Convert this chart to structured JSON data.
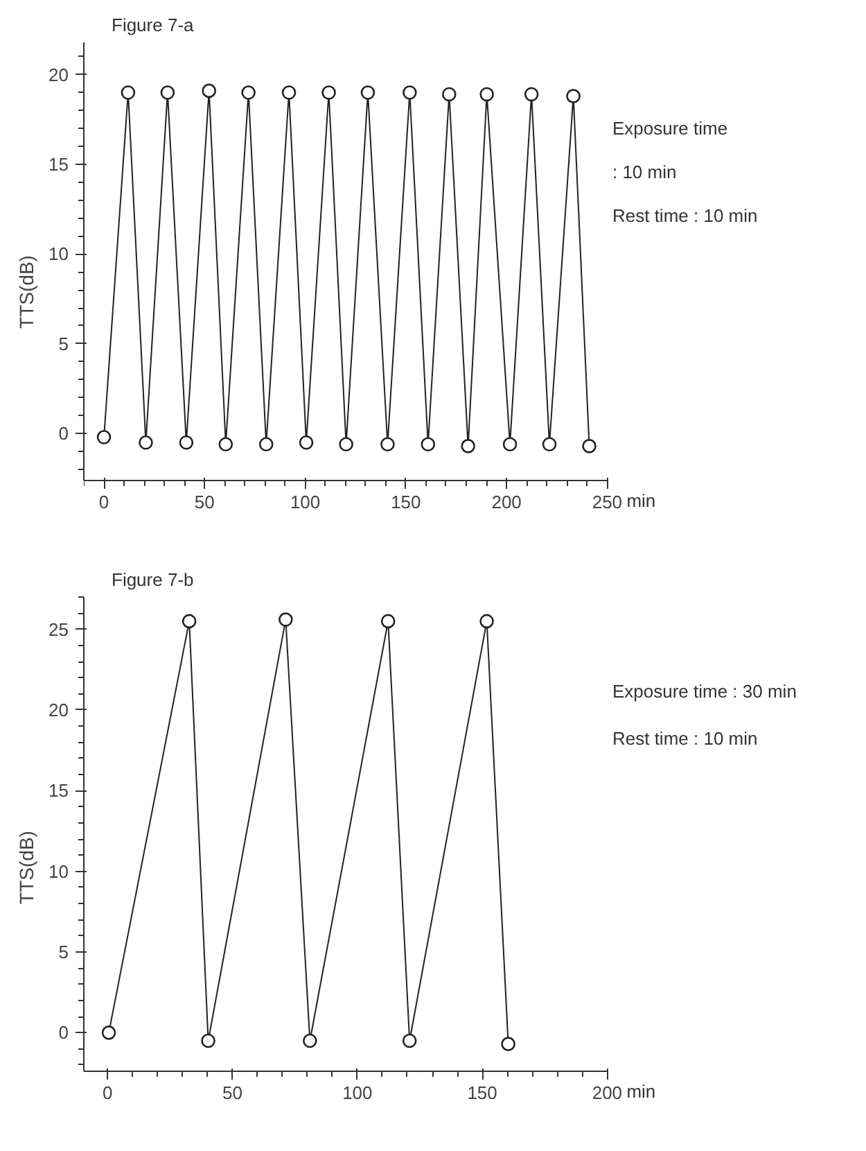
{
  "chart_data": [
    {
      "type": "line",
      "title": "Figure 7-a",
      "xlabel": "min",
      "ylabel": "TTS(dB)",
      "marker": "circle",
      "line_style": "solid",
      "grid": false,
      "xlim": [
        -10,
        250
      ],
      "ylim": [
        -2.6,
        21.8
      ],
      "xticks": [
        0,
        50,
        100,
        150,
        200,
        250
      ],
      "yticks": [
        0,
        5,
        10,
        15,
        20
      ],
      "annotations": [
        "Exposure time",
        ": 10 min",
        "Rest time : 10 min"
      ],
      "series": [
        {
          "color": "#222222",
          "x": [
            0,
            12,
            20.8,
            31.6,
            40.9,
            52.2,
            60.5,
            71.8,
            80.6,
            91.9,
            100.5,
            111.7,
            120.3,
            131.1,
            140.9,
            151.9,
            161,
            171.5,
            180.9,
            190.2,
            201.7,
            212.4,
            221.3,
            233.2,
            241.1
          ],
          "values": [
            -0.2,
            19,
            -0.5,
            19,
            -0.5,
            19.1,
            -0.6,
            19,
            -0.6,
            19,
            -0.5,
            19,
            -0.6,
            19,
            -0.6,
            19,
            -0.6,
            18.9,
            -0.7,
            18.9,
            -0.6,
            18.9,
            -0.6,
            18.8,
            -0.7
          ]
        }
      ]
    },
    {
      "type": "line",
      "title": "Figure 7-b",
      "xlabel": "min",
      "ylabel": "TTS(dB)",
      "marker": "circle",
      "line_style": "solid",
      "grid": false,
      "xlim": [
        -9.5,
        200
      ],
      "ylim": [
        -2.4,
        27
      ],
      "xticks": [
        0,
        50,
        100,
        150,
        200
      ],
      "yticks": [
        0,
        5,
        10,
        15,
        20,
        25
      ],
      "annotations": [
        "Exposure time : 30 min",
        "Rest time : 10 min"
      ],
      "series": [
        {
          "color": "#222222",
          "x": [
            0.5,
            32.7,
            40.3,
            71.3,
            81,
            112.3,
            120.9,
            151.8,
            160.4
          ],
          "values": [
            0,
            25.5,
            -0.5,
            25.6,
            -0.5,
            25.5,
            -0.5,
            25.5,
            -0.7
          ]
        }
      ]
    }
  ]
}
